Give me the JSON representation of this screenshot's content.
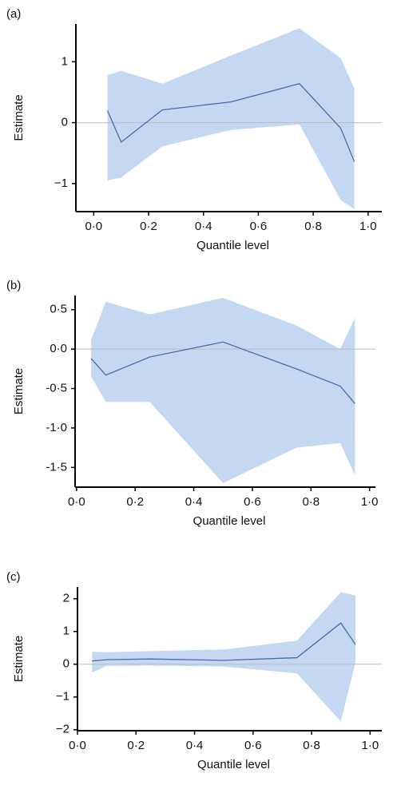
{
  "chart_data": [
    {
      "type": "line",
      "panel_label": "(a)",
      "xlabel": "Quantile level",
      "ylabel": "Estimate",
      "x": [
        0.05,
        0.1,
        0.25,
        0.5,
        0.75,
        0.9,
        0.95
      ],
      "values": [
        0.2,
        -0.32,
        0.21,
        0.34,
        0.64,
        -0.09,
        -0.64
      ],
      "upper": [
        0.78,
        0.85,
        0.64,
        1.1,
        1.55,
        1.06,
        0.56
      ],
      "lower": [
        -0.95,
        -0.9,
        -0.39,
        -0.12,
        -0.03,
        -1.27,
        -1.42
      ],
      "color": "#4a6aa8",
      "band_color": "#c4d8f2",
      "reference_line": 0,
      "xlim": [
        -0.065,
        1.05
      ],
      "ylim": [
        -1.46,
        1.62
      ],
      "xticks": [
        {
          "value": 0,
          "label": "0·0"
        },
        {
          "value": 0.2,
          "label": "0·2"
        },
        {
          "value": 0.4,
          "label": "0·4"
        },
        {
          "value": 0.6,
          "label": "0·6"
        },
        {
          "value": 0.8,
          "label": "0·8"
        },
        {
          "value": 1,
          "label": "1·0"
        }
      ],
      "yticks": [
        {
          "value": -1,
          "label": "−1"
        },
        0,
        1
      ]
    },
    {
      "type": "line",
      "panel_label": "(b)",
      "xlabel": "Quantile level",
      "ylabel": "Estimate",
      "x": [
        0.05,
        0.1,
        0.25,
        0.5,
        0.75,
        0.9,
        0.95
      ],
      "values": [
        -0.12,
        -0.33,
        -0.1,
        0.09,
        -0.25,
        -0.47,
        -0.69
      ],
      "upper": [
        0.12,
        0.6,
        0.44,
        0.65,
        0.3,
        0.0,
        0.4
      ],
      "lower": [
        -0.35,
        -0.67,
        -0.67,
        -1.7,
        -1.25,
        -1.19,
        -1.6
      ],
      "color": "#4a6aa8",
      "band_color": "#c4d8f2",
      "reference_line": 0,
      "xlim": [
        -0.005,
        1.02
      ],
      "ylim": [
        -1.75,
        0.68
      ],
      "xticks": [
        {
          "value": 0,
          "label": "0·0"
        },
        {
          "value": 0.2,
          "label": "0·2"
        },
        {
          "value": 0.4,
          "label": "0·4"
        },
        {
          "value": 0.6,
          "label": "0·6"
        },
        {
          "value": 0.8,
          "label": "0·8"
        },
        {
          "value": 1,
          "label": "1·0"
        }
      ],
      "yticks": [
        {
          "value": -1.5,
          "label": "-1·5"
        },
        {
          "value": -1,
          "label": "-1·0"
        },
        {
          "value": -0.5,
          "label": "-0·5"
        },
        {
          "value": 0,
          "label": "0·0"
        },
        {
          "value": 0.5,
          "label": "0·5"
        }
      ]
    },
    {
      "type": "line",
      "panel_label": "(c)",
      "xlabel": "Quantile level",
      "ylabel": "Estimate",
      "x": [
        0.05,
        0.1,
        0.25,
        0.5,
        0.75,
        0.9,
        0.95
      ],
      "values": [
        0.1,
        0.14,
        0.16,
        0.12,
        0.2,
        1.26,
        0.6
      ],
      "upper": [
        0.38,
        0.37,
        0.4,
        0.45,
        0.72,
        2.2,
        2.1
      ],
      "lower": [
        -0.25,
        -0.05,
        -0.04,
        -0.07,
        -0.28,
        -1.75,
        0.05
      ],
      "color": "#4a6aa8",
      "band_color": "#c4d8f2",
      "reference_line": 0,
      "xlim": [
        0,
        1.04
      ],
      "ylim": [
        -2.03,
        2.36
      ],
      "xticks": [
        {
          "value": 0,
          "label": "0·0"
        },
        {
          "value": 0.2,
          "label": "0·2"
        },
        {
          "value": 0.4,
          "label": "0·4"
        },
        {
          "value": 0.6,
          "label": "0·6"
        },
        {
          "value": 0.8,
          "label": "0·8"
        },
        {
          "value": 1,
          "label": "1·0"
        }
      ],
      "yticks": [
        {
          "value": -2,
          "label": "−2"
        },
        {
          "value": -1,
          "label": "−1"
        },
        0,
        1,
        2
      ]
    }
  ]
}
